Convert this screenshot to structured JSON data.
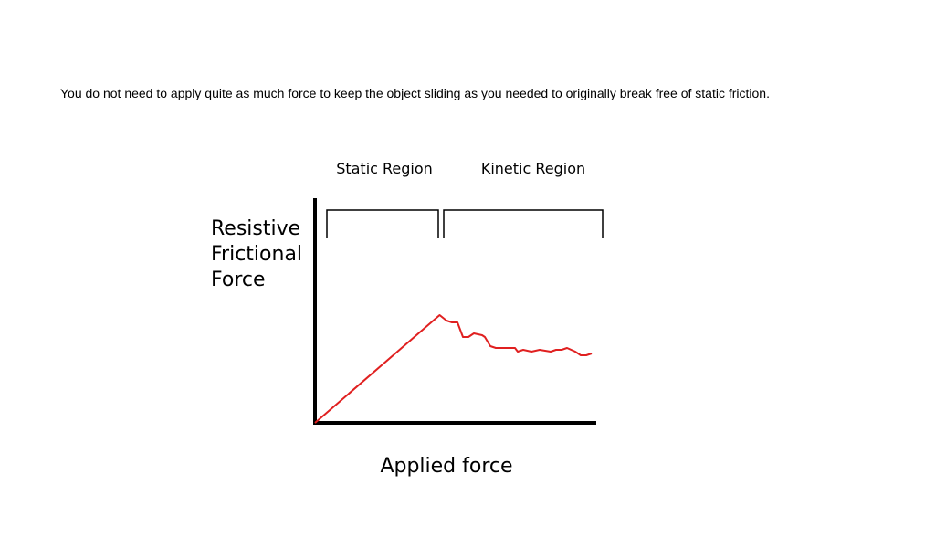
{
  "caption": "You do not need to apply quite as much force to keep the object sliding as you needed to originally break free of static friction.",
  "colors": {
    "curve": "#e02020",
    "axes": "#000000"
  },
  "chart_data": {
    "type": "line",
    "title": "",
    "xlabel": "Applied force",
    "ylabel_lines": [
      "Resistive",
      "Frictional",
      "Force"
    ],
    "regions": [
      {
        "name": "Static Region",
        "x_range": [
          0,
          45
        ]
      },
      {
        "name": "Kinetic Region",
        "x_range": [
          47,
          105
        ]
      }
    ],
    "xlim": [
      0,
      100
    ],
    "ylim": [
      0,
      100
    ],
    "grid": false,
    "legend": "none",
    "series": [
      {
        "x": [
          0,
          45.5,
          48,
          50,
          52,
          54,
          56,
          58,
          61,
          62,
          64,
          66,
          70,
          73,
          74,
          76,
          79,
          82,
          86,
          88,
          90,
          92,
          95,
          97,
          99,
          101
        ],
        "y": [
          0,
          59,
          56,
          55,
          55,
          47,
          47,
          49,
          48,
          47,
          42,
          41,
          41,
          41,
          39,
          40,
          39,
          40,
          39,
          40,
          40,
          41,
          39,
          37,
          37,
          38
        ]
      }
    ]
  }
}
